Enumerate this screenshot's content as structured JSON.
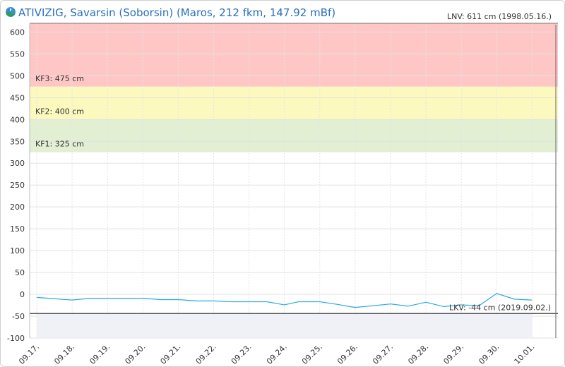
{
  "header": {
    "title": "ATIVIZIG, Savarsin (Soborsin) (Maros, 212 fkm, 147.92 mBf)",
    "lnv": "LNV: 611 cm (1998.05.16.)",
    "logo_icon": "water-drop-globe-icon"
  },
  "colors": {
    "title": "#2a6fc0",
    "line": "#29a8e0",
    "kf3_band": "#ffc6c6",
    "kf2_band": "#fcf9bf",
    "kf1_band": "#e2efd3",
    "below_fill": "#f0f1f6"
  },
  "chart_data": {
    "type": "line",
    "ylim": [
      -100,
      620
    ],
    "y_ticks": [
      -100,
      -50,
      0,
      50,
      100,
      150,
      200,
      250,
      300,
      350,
      400,
      450,
      500,
      550,
      600
    ],
    "x_ticks": [
      "09.17.",
      "09.18.",
      "09.19.",
      "09.20.",
      "09.21.",
      "09.22.",
      "09.23.",
      "09.24.",
      "09.25.",
      "09.26.",
      "09.27.",
      "09.28.",
      "09.29.",
      "09.30.",
      "10.01."
    ],
    "x_range": [
      0,
      14.2
    ],
    "grid": true,
    "bands": [
      {
        "label": "KF3: 475 cm",
        "from": 475,
        "to": 620
      },
      {
        "label": "KF2: 400 cm",
        "from": 400,
        "to": 475
      },
      {
        "label": "KF1: 325 cm",
        "from": 325,
        "to": 400
      }
    ],
    "lkv": {
      "label": "LKV: -44 cm (2019.09.02.)",
      "value": -44
    },
    "series": [
      {
        "x": [
          0,
          0.5,
          1,
          1.5,
          2,
          2.5,
          3,
          3.5,
          4,
          4.5,
          5,
          5.5,
          6,
          6.5,
          7,
          7.4,
          8,
          8.5,
          9,
          9.5,
          10,
          10.5,
          11,
          11.5,
          12,
          12.5,
          13,
          13.5,
          14
        ],
        "values": [
          -7,
          -10,
          -13,
          -9,
          -9,
          -9,
          -9,
          -12,
          -12,
          -15,
          -15,
          -17,
          -17,
          -17,
          -24,
          -17,
          -17,
          -23,
          -30,
          -26,
          -22,
          -27,
          -18,
          -28,
          -24,
          -26,
          2,
          -11,
          -13
        ]
      }
    ]
  }
}
